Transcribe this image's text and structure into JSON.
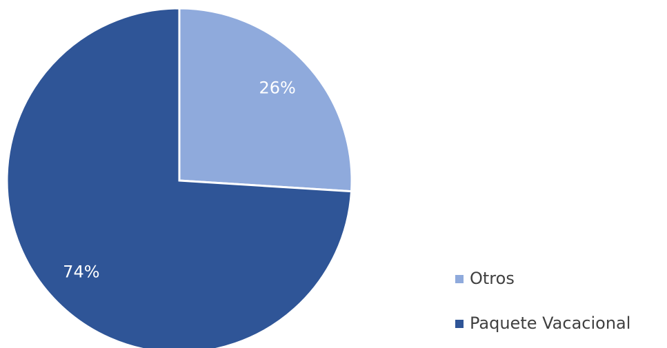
{
  "chart_data": {
    "type": "pie",
    "categories": [
      "Otros",
      "Paquete Vacacional"
    ],
    "values": [
      26,
      74
    ],
    "value_labels": [
      "26%",
      "74%"
    ],
    "colors": [
      "#8faadc",
      "#2f5597"
    ]
  }
}
